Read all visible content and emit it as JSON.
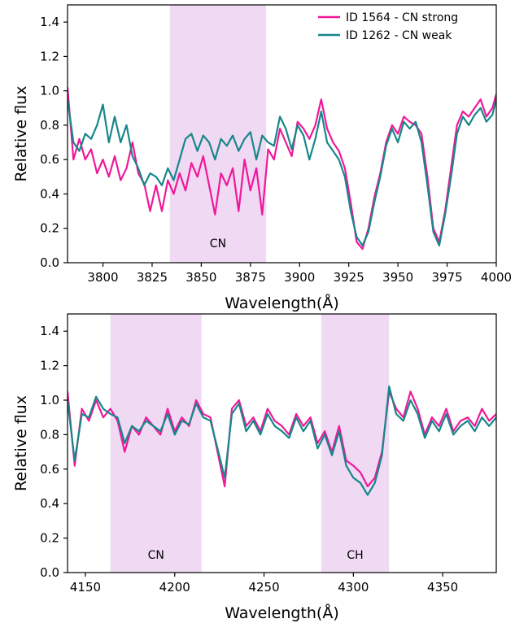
{
  "chart_data": [
    {
      "type": "line",
      "xlabel": "Wavelength(Å)",
      "ylabel": "Relative flux",
      "xlim": [
        3782,
        4000
      ],
      "ylim": [
        0,
        1.5
      ],
      "xticks": [
        3800,
        3825,
        3850,
        3875,
        3900,
        3925,
        3950,
        3975,
        4000
      ],
      "yticks": [
        0.0,
        0.2,
        0.4,
        0.6,
        0.8,
        1.0,
        1.2,
        1.4
      ],
      "legend": "top-right",
      "bands": [
        {
          "label": "CN",
          "x0": 3834,
          "x1": 3883,
          "color": "#efd9f3"
        }
      ],
      "series": [
        {
          "name": "ID 1564 - CN strong",
          "color": "#f0189a",
          "x": [
            3782,
            3785,
            3788,
            3791,
            3794,
            3797,
            3800,
            3803,
            3806,
            3809,
            3812,
            3815,
            3818,
            3821,
            3824,
            3827,
            3830,
            3833,
            3836,
            3839,
            3842,
            3845,
            3848,
            3851,
            3854,
            3857,
            3860,
            3863,
            3866,
            3869,
            3872,
            3875,
            3878,
            3881,
            3884,
            3887,
            3890,
            3893,
            3896,
            3899,
            3902,
            3905,
            3908,
            3911,
            3914,
            3917,
            3920,
            3923,
            3926,
            3929,
            3932,
            3935,
            3938,
            3941,
            3944,
            3947,
            3950,
            3953,
            3956,
            3959,
            3962,
            3965,
            3968,
            3971,
            3974,
            3977,
            3980,
            3983,
            3986,
            3989,
            3992,
            3995,
            3998,
            4000
          ],
          "y": [
            1.02,
            0.6,
            0.72,
            0.6,
            0.66,
            0.52,
            0.6,
            0.5,
            0.62,
            0.48,
            0.55,
            0.7,
            0.52,
            0.46,
            0.3,
            0.45,
            0.3,
            0.48,
            0.4,
            0.52,
            0.42,
            0.58,
            0.5,
            0.62,
            0.45,
            0.28,
            0.52,
            0.45,
            0.55,
            0.3,
            0.6,
            0.42,
            0.55,
            0.28,
            0.66,
            0.6,
            0.78,
            0.7,
            0.62,
            0.82,
            0.78,
            0.72,
            0.8,
            0.95,
            0.78,
            0.7,
            0.65,
            0.55,
            0.35,
            0.12,
            0.08,
            0.2,
            0.38,
            0.52,
            0.7,
            0.8,
            0.75,
            0.85,
            0.82,
            0.8,
            0.75,
            0.5,
            0.2,
            0.12,
            0.3,
            0.55,
            0.8,
            0.88,
            0.85,
            0.9,
            0.95,
            0.85,
            0.9,
            0.98
          ]
        },
        {
          "name": "ID 1262 - CN weak",
          "color": "#17878a",
          "x": [
            3782,
            3785,
            3788,
            3791,
            3794,
            3797,
            3800,
            3803,
            3806,
            3809,
            3812,
            3815,
            3818,
            3821,
            3824,
            3827,
            3830,
            3833,
            3836,
            3839,
            3842,
            3845,
            3848,
            3851,
            3854,
            3857,
            3860,
            3863,
            3866,
            3869,
            3872,
            3875,
            3878,
            3881,
            3884,
            3887,
            3890,
            3893,
            3896,
            3899,
            3902,
            3905,
            3908,
            3911,
            3914,
            3917,
            3920,
            3923,
            3926,
            3929,
            3932,
            3935,
            3938,
            3941,
            3944,
            3947,
            3950,
            3953,
            3956,
            3959,
            3962,
            3965,
            3968,
            3971,
            3974,
            3977,
            3980,
            3983,
            3986,
            3989,
            3992,
            3995,
            3998,
            4000
          ],
          "y": [
            0.95,
            0.7,
            0.65,
            0.75,
            0.72,
            0.8,
            0.92,
            0.7,
            0.85,
            0.7,
            0.8,
            0.62,
            0.55,
            0.45,
            0.52,
            0.5,
            0.45,
            0.55,
            0.48,
            0.6,
            0.72,
            0.75,
            0.65,
            0.74,
            0.7,
            0.6,
            0.72,
            0.68,
            0.74,
            0.65,
            0.72,
            0.76,
            0.6,
            0.74,
            0.7,
            0.68,
            0.85,
            0.78,
            0.66,
            0.8,
            0.74,
            0.6,
            0.72,
            0.88,
            0.7,
            0.65,
            0.6,
            0.5,
            0.3,
            0.15,
            0.1,
            0.18,
            0.35,
            0.5,
            0.68,
            0.78,
            0.7,
            0.82,
            0.78,
            0.82,
            0.7,
            0.45,
            0.18,
            0.1,
            0.28,
            0.5,
            0.75,
            0.85,
            0.8,
            0.86,
            0.9,
            0.82,
            0.86,
            0.95
          ]
        }
      ]
    },
    {
      "type": "line",
      "xlabel": "Wavelength(Å)",
      "ylabel": "Relative flux",
      "xlim": [
        4140,
        4380
      ],
      "ylim": [
        0,
        1.5
      ],
      "xticks": [
        4150,
        4200,
        4250,
        4300,
        4350
      ],
      "yticks": [
        0.0,
        0.2,
        0.4,
        0.6,
        0.8,
        1.0,
        1.2,
        1.4
      ],
      "bands": [
        {
          "label": "CN",
          "x0": 4164,
          "x1": 4215,
          "color": "#efd9f3"
        },
        {
          "label": "CH",
          "x0": 4282,
          "x1": 4320,
          "color": "#efd9f3"
        }
      ],
      "series": [
        {
          "name": "ID 1564 - CN strong",
          "color": "#f0189a",
          "x": [
            4140,
            4144,
            4148,
            4152,
            4156,
            4160,
            4164,
            4168,
            4172,
            4176,
            4180,
            4184,
            4188,
            4192,
            4196,
            4200,
            4204,
            4208,
            4212,
            4216,
            4220,
            4224,
            4228,
            4232,
            4236,
            4240,
            4244,
            4248,
            4252,
            4256,
            4260,
            4264,
            4268,
            4272,
            4276,
            4280,
            4284,
            4288,
            4292,
            4296,
            4300,
            4304,
            4308,
            4312,
            4316,
            4320,
            4324,
            4328,
            4332,
            4336,
            4340,
            4344,
            4348,
            4352,
            4356,
            4360,
            4364,
            4368,
            4372,
            4376,
            4380
          ],
          "y": [
            1.05,
            0.62,
            0.95,
            0.88,
            1.0,
            0.9,
            0.95,
            0.88,
            0.7,
            0.85,
            0.8,
            0.9,
            0.85,
            0.8,
            0.95,
            0.82,
            0.9,
            0.85,
            1.0,
            0.92,
            0.9,
            0.7,
            0.5,
            0.95,
            1.0,
            0.85,
            0.9,
            0.82,
            0.95,
            0.88,
            0.85,
            0.8,
            0.92,
            0.85,
            0.9,
            0.75,
            0.82,
            0.7,
            0.85,
            0.65,
            0.62,
            0.58,
            0.5,
            0.55,
            0.7,
            1.05,
            0.95,
            0.9,
            1.05,
            0.95,
            0.8,
            0.9,
            0.85,
            0.95,
            0.82,
            0.88,
            0.9,
            0.85,
            0.95,
            0.88,
            0.92
          ]
        },
        {
          "name": "ID 1262 - CN weak",
          "color": "#17878a",
          "x": [
            4140,
            4144,
            4148,
            4152,
            4156,
            4160,
            4164,
            4168,
            4172,
            4176,
            4180,
            4184,
            4188,
            4192,
            4196,
            4200,
            4204,
            4208,
            4212,
            4216,
            4220,
            4224,
            4228,
            4232,
            4236,
            4240,
            4244,
            4248,
            4252,
            4256,
            4260,
            4264,
            4268,
            4272,
            4276,
            4280,
            4284,
            4288,
            4292,
            4296,
            4300,
            4304,
            4308,
            4312,
            4316,
            4320,
            4324,
            4328,
            4332,
            4336,
            4340,
            4344,
            4348,
            4352,
            4356,
            4360,
            4364,
            4368,
            4372,
            4376,
            4380
          ],
          "y": [
            1.0,
            0.65,
            0.92,
            0.9,
            1.02,
            0.95,
            0.92,
            0.9,
            0.75,
            0.85,
            0.82,
            0.88,
            0.85,
            0.82,
            0.92,
            0.8,
            0.88,
            0.86,
            0.98,
            0.9,
            0.88,
            0.72,
            0.55,
            0.92,
            0.98,
            0.82,
            0.88,
            0.8,
            0.92,
            0.85,
            0.82,
            0.78,
            0.9,
            0.82,
            0.88,
            0.72,
            0.8,
            0.68,
            0.82,
            0.62,
            0.55,
            0.52,
            0.45,
            0.52,
            0.68,
            1.08,
            0.92,
            0.88,
            1.0,
            0.92,
            0.78,
            0.88,
            0.82,
            0.92,
            0.8,
            0.85,
            0.88,
            0.82,
            0.9,
            0.85,
            0.9
          ]
        }
      ]
    }
  ]
}
